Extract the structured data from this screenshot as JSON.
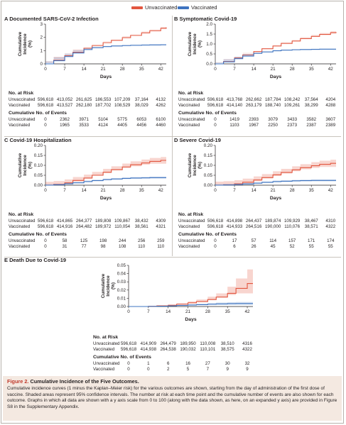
{
  "legend": [
    {
      "label": "Unvaccinated",
      "color": "#e2563f"
    },
    {
      "label": "Vaccinated",
      "color": "#3f74c0"
    }
  ],
  "tables": {
    "at_risk_title": "No. at Risk",
    "events_title": "Cumulative No. of Events",
    "row_labels": [
      "Unvaccinated",
      "Vaccinated"
    ]
  },
  "caption": {
    "figure_label": "Figure 2.",
    "title": "Cumulative Incidence of the Five Outcomes.",
    "text": "Cumulative incidence curves (1 minus the Kaplan–Meier risk) for the various outcomes are shown, starting from the day of administration of the first dose of vaccine. Shaded areas represent 95% confidence intervals. The number at risk at each time point and the cumulative number of events are also shown for each outcome. Graphs in which all data are shown with a y axis scale from 0 to 100 (along with the data shown, as here, on an expanded y axis) are provided in Figure S8 in the Supplementary Appendix."
  },
  "chart_data": [
    {
      "panel": "A",
      "type": "line",
      "title": "Documented SARS-CoV-2 Infection",
      "xlabel": "Days",
      "ylabel": "Cumulative Incidence (%)",
      "xlim": [
        0,
        44
      ],
      "ylim": [
        0,
        3
      ],
      "xticks": [
        0,
        7,
        14,
        21,
        28,
        35,
        42
      ],
      "yticks": [
        0,
        1,
        2,
        3
      ],
      "ytick_labels": [
        "0",
        "1",
        "2",
        "3"
      ],
      "series": [
        {
          "name": "Unvaccinated",
          "x": [
            0,
            3,
            7,
            10,
            14,
            17,
            21,
            24,
            28,
            31,
            35,
            38,
            42,
            44
          ],
          "y": [
            0,
            0.28,
            0.62,
            0.88,
            1.18,
            1.38,
            1.6,
            1.78,
            1.98,
            2.15,
            2.34,
            2.5,
            2.68,
            2.75
          ],
          "ci": 0.1
        },
        {
          "name": "Vaccinated",
          "x": [
            0,
            3,
            7,
            10,
            14,
            17,
            21,
            24,
            28,
            31,
            35,
            38,
            42,
            44
          ],
          "y": [
            0,
            0.24,
            0.55,
            0.82,
            1.08,
            1.22,
            1.3,
            1.35,
            1.38,
            1.4,
            1.42,
            1.43,
            1.44,
            1.44
          ],
          "ci": 0.05
        }
      ],
      "at_risk": {
        "columns": [
          "Unvaccinated",
          "Vaccinated"
        ],
        "rows": [
          [
            "596,618",
            "413,052",
            "261,625",
            "186,553",
            "107,209",
            "37,164",
            "4132"
          ],
          [
            "596,618",
            "413,527",
            "262,180",
            "187,702",
            "108,529",
            "38,029",
            "4262"
          ]
        ]
      },
      "events": {
        "rows": [
          [
            "0",
            "2362",
            "3971",
            "5104",
            "5775",
            "6053",
            "6100"
          ],
          [
            "0",
            "1965",
            "3533",
            "4124",
            "4405",
            "4456",
            "4460"
          ]
        ]
      }
    },
    {
      "panel": "B",
      "type": "line",
      "title": "Symptomatic Covid-19",
      "xlabel": "Days",
      "ylabel": "Cumulative Incidence (%)",
      "xlim": [
        0,
        44
      ],
      "ylim": [
        0,
        2.0
      ],
      "xticks": [
        0,
        7,
        14,
        21,
        28,
        35,
        42
      ],
      "yticks": [
        0,
        0.5,
        1.0,
        1.5,
        2.0
      ],
      "ytick_labels": [
        "0.0",
        "0.5",
        "1.0",
        "1.5",
        "2.0"
      ],
      "series": [
        {
          "name": "Unvaccinated",
          "x": [
            0,
            3,
            7,
            10,
            14,
            17,
            21,
            24,
            28,
            31,
            35,
            38,
            42,
            44
          ],
          "y": [
            0,
            0.12,
            0.3,
            0.45,
            0.62,
            0.76,
            0.9,
            1.03,
            1.15,
            1.27,
            1.38,
            1.48,
            1.57,
            1.6
          ],
          "ci": 0.07
        },
        {
          "name": "Vaccinated",
          "x": [
            0,
            3,
            7,
            10,
            14,
            17,
            21,
            24,
            28,
            31,
            35,
            38,
            42,
            44
          ],
          "y": [
            0,
            0.1,
            0.26,
            0.39,
            0.53,
            0.6,
            0.66,
            0.69,
            0.71,
            0.72,
            0.73,
            0.74,
            0.74,
            0.74
          ],
          "ci": 0.03
        }
      ],
      "at_risk": {
        "rows": [
          [
            "596,618",
            "413,768",
            "262,662",
            "187,784",
            "108,242",
            "37,564",
            "4204"
          ],
          [
            "596,618",
            "414,140",
            "263,179",
            "188,740",
            "109,261",
            "38,299",
            "4288"
          ]
        ]
      },
      "events": {
        "rows": [
          [
            "0",
            "1419",
            "2393",
            "3079",
            "3433",
            "3582",
            "3607"
          ],
          [
            "0",
            "1103",
            "1967",
            "2250",
            "2373",
            "2387",
            "2389"
          ]
        ]
      }
    },
    {
      "panel": "C",
      "type": "line",
      "title": "Covid-19 Hospitalization",
      "xlabel": "Days",
      "ylabel": "Cumulative Incidence (%)",
      "xlim": [
        0,
        44
      ],
      "ylim": [
        0,
        0.2
      ],
      "xticks": [
        0,
        7,
        14,
        21,
        28,
        35,
        42
      ],
      "yticks": [
        0,
        0.05,
        0.1,
        0.15,
        0.2
      ],
      "ytick_labels": [
        "0.00",
        "0.05",
        "0.10",
        "0.15",
        "0.20"
      ],
      "series": [
        {
          "name": "Unvaccinated",
          "x": [
            0,
            3,
            7,
            10,
            14,
            17,
            21,
            24,
            28,
            31,
            35,
            38,
            42,
            44
          ],
          "y": [
            0,
            0.004,
            0.012,
            0.024,
            0.036,
            0.05,
            0.065,
            0.078,
            0.092,
            0.103,
            0.112,
            0.12,
            0.125,
            0.125
          ],
          "ci": 0.017
        },
        {
          "name": "Vaccinated",
          "x": [
            0,
            3,
            7,
            10,
            14,
            17,
            21,
            24,
            28,
            31,
            35,
            38,
            42,
            44
          ],
          "y": [
            0,
            0.002,
            0.007,
            0.012,
            0.018,
            0.023,
            0.028,
            0.031,
            0.034,
            0.036,
            0.037,
            0.038,
            0.038,
            0.038
          ],
          "ci": 0.005
        }
      ],
      "at_risk": {
        "rows": [
          [
            "596,618",
            "414,865",
            "264,377",
            "189,808",
            "109,867",
            "38,432",
            "4309"
          ],
          [
            "596,618",
            "414,916",
            "264,482",
            "189,972",
            "110,054",
            "38,561",
            "4321"
          ]
        ]
      },
      "events": {
        "rows": [
          [
            "0",
            "58",
            "125",
            "198",
            "244",
            "256",
            "259"
          ],
          [
            "0",
            "31",
            "77",
            "98",
            "108",
            "110",
            "110"
          ]
        ]
      }
    },
    {
      "panel": "D",
      "type": "line",
      "title": "Severe Covid-19",
      "xlabel": "Days",
      "ylabel": "Cumulative Incidence (%)",
      "xlim": [
        0,
        44
      ],
      "ylim": [
        0,
        0.2
      ],
      "xticks": [
        0,
        7,
        14,
        21,
        28,
        35,
        42
      ],
      "yticks": [
        0,
        0.05,
        0.1,
        0.15,
        0.2
      ],
      "ytick_labels": [
        "0.00",
        "0.05",
        "0.10",
        "0.15",
        "0.20"
      ],
      "series": [
        {
          "name": "Unvaccinated",
          "x": [
            0,
            3,
            7,
            10,
            14,
            17,
            21,
            24,
            28,
            31,
            35,
            38,
            42,
            44
          ],
          "y": [
            0,
            0.002,
            0.007,
            0.015,
            0.026,
            0.038,
            0.052,
            0.064,
            0.077,
            0.088,
            0.098,
            0.105,
            0.11,
            0.11
          ],
          "ci": 0.018
        },
        {
          "name": "Vaccinated",
          "x": [
            0,
            3,
            7,
            10,
            14,
            17,
            21,
            24,
            28,
            31,
            35,
            38,
            42,
            44
          ],
          "y": [
            0,
            0.001,
            0.003,
            0.006,
            0.01,
            0.014,
            0.018,
            0.02,
            0.022,
            0.023,
            0.024,
            0.024,
            0.024,
            0.024
          ],
          "ci": 0.005
        }
      ],
      "at_risk": {
        "rows": [
          [
            "596,618",
            "414,898",
            "264,437",
            "189,874",
            "109,929",
            "38,467",
            "4310"
          ],
          [
            "596,618",
            "414,933",
            "264,516",
            "190,000",
            "110,076",
            "38,571",
            "4322"
          ]
        ]
      },
      "events": {
        "rows": [
          [
            "0",
            "17",
            "57",
            "114",
            "157",
            "171",
            "174"
          ],
          [
            "0",
            "6",
            "26",
            "45",
            "52",
            "55",
            "55"
          ]
        ]
      }
    },
    {
      "panel": "E",
      "type": "line",
      "title": "Death Due to Covid-19",
      "xlabel": "Days",
      "ylabel": "Cumulative Incidence (%)",
      "xlim": [
        0,
        44
      ],
      "ylim": [
        0,
        0.05
      ],
      "xticks": [
        0,
        7,
        14,
        21,
        28,
        35,
        42
      ],
      "yticks": [
        0,
        0.01,
        0.02,
        0.03,
        0.04,
        0.05
      ],
      "ytick_labels": [
        "0.00",
        "0.01",
        "0.02",
        "0.03",
        "0.04",
        "0.05"
      ],
      "series": [
        {
          "name": "Unvaccinated",
          "x": [
            0,
            7,
            10,
            14,
            17,
            21,
            24,
            28,
            31,
            35,
            38,
            42,
            44
          ],
          "y": [
            0,
            0.0003,
            0.0008,
            0.0015,
            0.0028,
            0.0045,
            0.006,
            0.0085,
            0.0115,
            0.016,
            0.022,
            0.028,
            0.028
          ],
          "ci_lo": [
            0,
            0.0001,
            0.0003,
            0.0007,
            0.0015,
            0.0028,
            0.004,
            0.006,
            0.008,
            0.011,
            0.014,
            0.016,
            0.016
          ],
          "ci_hi": [
            0,
            0.0006,
            0.0014,
            0.0025,
            0.004,
            0.0062,
            0.0085,
            0.012,
            0.016,
            0.024,
            0.034,
            0.045,
            0.045
          ]
        },
        {
          "name": "Vaccinated",
          "x": [
            0,
            7,
            10,
            14,
            17,
            21,
            24,
            28,
            31,
            35,
            38,
            42,
            44
          ],
          "y": [
            0,
            0.0002,
            0.0004,
            0.0008,
            0.0013,
            0.0018,
            0.0022,
            0.0028,
            0.0032,
            0.0035,
            0.0036,
            0.0036,
            0.0036
          ],
          "ci_lo": [
            0,
            0.0001,
            0.0002,
            0.0004,
            0.0007,
            0.001,
            0.0012,
            0.0016,
            0.0018,
            0.002,
            0.002,
            0.002,
            0.002
          ],
          "ci_hi": [
            0,
            0.0004,
            0.0007,
            0.0013,
            0.002,
            0.0028,
            0.0034,
            0.0042,
            0.0048,
            0.0053,
            0.0055,
            0.0055,
            0.0055
          ]
        }
      ],
      "at_risk": {
        "rows": [
          [
            "596,618",
            "414,909",
            "264,479",
            "189,950",
            "110,008",
            "38,510",
            "4316"
          ],
          [
            "596,618",
            "414,938",
            "264,538",
            "190,032",
            "110,101",
            "38,575",
            "4322"
          ]
        ]
      },
      "events": {
        "rows": [
          [
            "0",
            "1",
            "6",
            "16",
            "27",
            "30",
            "32"
          ],
          [
            "0",
            "0",
            "2",
            "5",
            "7",
            "9",
            "9"
          ]
        ]
      }
    }
  ]
}
